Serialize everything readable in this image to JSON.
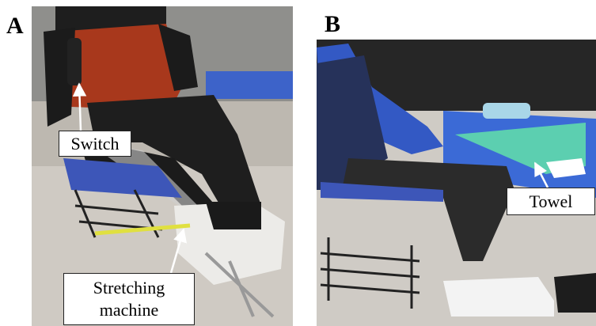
{
  "panels": [
    {
      "label": "A",
      "callouts": [
        {
          "text": "Switch"
        },
        {
          "text": "Stretching machine"
        }
      ]
    },
    {
      "label": "B",
      "callouts": [
        {
          "text": "Towel"
        }
      ]
    }
  ]
}
